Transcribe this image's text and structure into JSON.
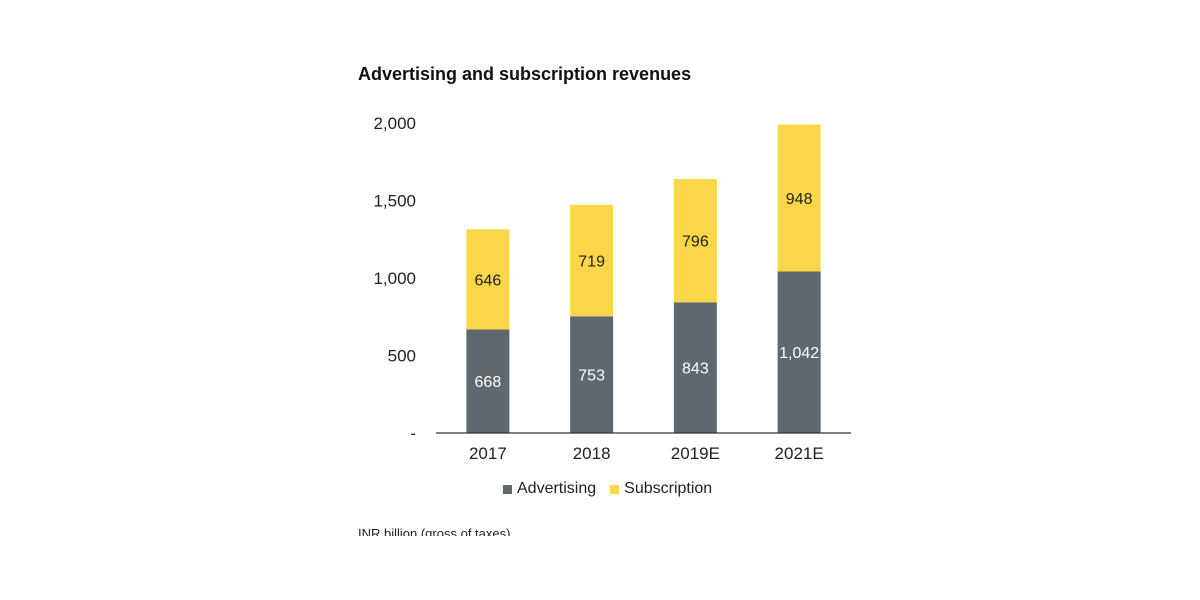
{
  "chart_data": {
    "type": "bar",
    "stacked": true,
    "title": "Advertising and subscription revenues",
    "categories": [
      "2017",
      "2018",
      "2019E",
      "2021E"
    ],
    "series": [
      {
        "name": "Advertising",
        "values": [
          668,
          753,
          843,
          1042
        ],
        "labels": [
          "668",
          "753",
          "843",
          "1,042"
        ],
        "color": "#5f676f"
      },
      {
        "name": "Subscription",
        "values": [
          646,
          719,
          796,
          948
        ],
        "labels": [
          "646",
          "719",
          "796",
          "948"
        ],
        "color": "#fad648"
      }
    ],
    "ylim": [
      0,
      2000
    ],
    "yticks": [
      0,
      500,
      1000,
      1500,
      2000
    ],
    "ytick_labels": [
      "-",
      "500",
      "1,000",
      "1,500",
      "2,000"
    ],
    "xlabel": "",
    "ylabel": "",
    "legend_position": "bottom",
    "footnote": "INR billion (gross of taxes)"
  }
}
